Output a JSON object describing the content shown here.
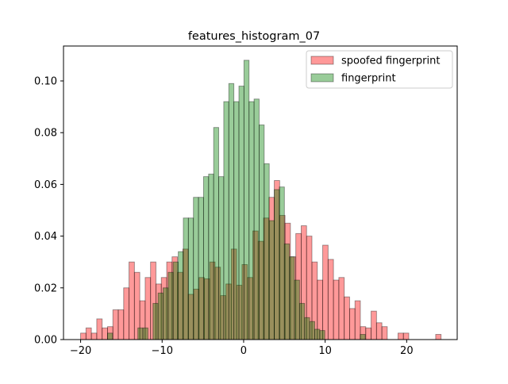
{
  "chart_data": {
    "type": "bar",
    "title": "features_histogram_07",
    "xlabel": "",
    "ylabel": "",
    "xlim": [
      -22.1,
      26.2
    ],
    "ylim": [
      0,
      0.1135
    ],
    "x_ticks": [
      -20,
      -10,
      0,
      10,
      20
    ],
    "x_tick_labels": [
      "−20",
      "−10",
      "0",
      "10",
      "20"
    ],
    "y_ticks": [
      0.0,
      0.02,
      0.04,
      0.06,
      0.08,
      0.1
    ],
    "y_tick_labels": [
      "0.00",
      "0.02",
      "0.04",
      "0.06",
      "0.08",
      "0.10"
    ],
    "grid": false,
    "legend_position": "top-right",
    "series": [
      {
        "name": "spoofed fingerprint",
        "color": "#ff0000",
        "alpha": 0.4,
        "bin_edges": [
          -20.0,
          -19.34,
          -18.68,
          -18.02,
          -17.36,
          -16.7,
          -16.04,
          -15.38,
          -14.72,
          -14.06,
          -13.4,
          -12.74,
          -12.08,
          -11.42,
          -10.76,
          -10.1,
          -9.44,
          -8.78,
          -8.12,
          -7.46,
          -6.8,
          -6.14,
          -5.48,
          -4.82,
          -4.16,
          -3.5,
          -2.84,
          -2.18,
          -1.52,
          -0.86,
          -0.2,
          0.46,
          1.12,
          1.78,
          2.44,
          3.1,
          3.76,
          4.42,
          5.08,
          5.74,
          6.4,
          7.06,
          7.72,
          8.38,
          9.04,
          9.7,
          10.36,
          11.02,
          11.68,
          12.34,
          13.0,
          13.66,
          14.32,
          14.98,
          15.64,
          16.3,
          16.96,
          17.62,
          18.28,
          18.94,
          19.6,
          20.26,
          20.92,
          21.58,
          22.24,
          22.9,
          23.56,
          24.22
        ],
        "values": [
          0.0025,
          0.0045,
          0.0025,
          0.008,
          0.0045,
          0.005,
          0.0115,
          0.0115,
          0.02,
          0.03,
          0.026,
          0.015,
          0.024,
          0.03,
          0.0215,
          0.024,
          0.03,
          0.032,
          0.026,
          0.035,
          0.0175,
          0.0195,
          0.024,
          0.0235,
          0.03,
          0.028,
          0.017,
          0.0215,
          0.035,
          0.021,
          0.029,
          0.024,
          0.042,
          0.038,
          0.047,
          0.055,
          0.0615,
          0.048,
          0.045,
          0.032,
          0.041,
          0.044,
          0.04,
          0.03,
          0.023,
          0.0365,
          0.031,
          0.023,
          0.024,
          0.0165,
          0.012,
          0.015,
          0.005,
          0.0045,
          0.011,
          0.0065,
          0.005,
          0.0,
          0.0,
          0.0025,
          0.0025,
          0.0,
          0.0,
          0.0,
          0.0,
          0.0,
          0.002
        ]
      },
      {
        "name": "fingerprint",
        "color": "#008000",
        "alpha": 0.4,
        "bin_edges": [
          -16.7,
          -16.08,
          -15.46,
          -14.84,
          -14.22,
          -13.6,
          -12.98,
          -12.36,
          -11.74,
          -11.12,
          -10.5,
          -9.88,
          -9.26,
          -8.64,
          -8.02,
          -7.4,
          -6.78,
          -6.16,
          -5.54,
          -4.92,
          -4.3,
          -3.68,
          -3.06,
          -2.44,
          -1.82,
          -1.2,
          -0.58,
          0.04,
          0.66,
          1.28,
          1.9,
          2.52,
          3.14,
          3.76,
          4.38,
          5.0,
          5.62,
          6.24,
          6.86,
          7.48,
          8.1,
          8.72,
          9.34,
          9.96,
          10.58,
          11.2,
          11.82,
          12.44,
          13.06,
          13.68,
          14.3,
          14.92
        ],
        "values": [
          0.0025,
          0.0,
          0.0,
          0.0,
          0.0,
          0.0,
          0.0045,
          0.0045,
          0.0,
          0.014,
          0.018,
          0.02,
          0.026,
          0.03,
          0.034,
          0.047,
          0.047,
          0.055,
          0.055,
          0.063,
          0.064,
          0.082,
          0.063,
          0.092,
          0.099,
          0.092,
          0.098,
          0.108,
          0.092,
          0.093,
          0.083,
          0.068,
          0.046,
          0.058,
          0.059,
          0.037,
          0.032,
          0.023,
          0.014,
          0.0085,
          0.007,
          0.004,
          0.0035,
          0.0,
          0.0,
          0.0,
          0.0,
          0.0,
          0.0,
          0.0,
          0.002
        ]
      }
    ]
  }
}
